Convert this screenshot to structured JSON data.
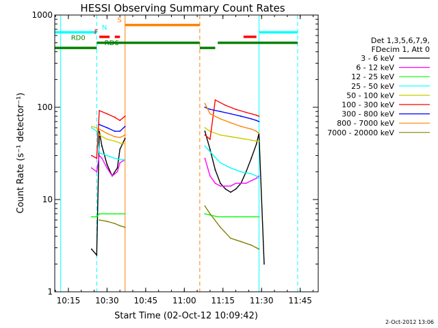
{
  "chart_data": {
    "type": "line",
    "title": "HESSI Observing Summary Count Rates",
    "xlabel": "Start Time (02-Oct-12 10:09:42)",
    "ylabel": "Count Rate (s⁻¹ detector⁻¹)",
    "x_ticks": [
      "10:15",
      "10:30",
      "10:45",
      "11:00",
      "11:15",
      "11:30",
      "11:45"
    ],
    "x_range": [
      "10:09:42",
      "11:52:00"
    ],
    "y_scale": "log",
    "y_ticks": [
      "1",
      "10",
      "100",
      "1000"
    ],
    "ylim": [
      1,
      1000
    ],
    "grid": false,
    "legend_position": "right",
    "legend_header": [
      "Det 1,3,5,6,7,9,",
      "FDecim 1, Att 0"
    ],
    "series": [
      {
        "name": "3 - 6 keV",
        "color": "#000000",
        "segments": [
          {
            "x": [
              "10:24",
              "10:26",
              "10:27",
              "10:28",
              "10:30",
              "10:32",
              "10:34",
              "10:35",
              "10:37"
            ],
            "y": [
              2.9,
              2.5,
              55,
              38,
              24,
              18,
              22,
              35,
              46
            ]
          },
          {
            "x": [
              "11:08",
              "11:10",
              "11:12",
              "11:14",
              "11:16",
              "11:18",
              "11:20",
              "11:22",
              "11:24",
              "11:26",
              "11:28",
              "11:29",
              "11:31"
            ],
            "y": [
              55,
              35,
              21,
              15,
              13,
              12,
              13,
              15,
              20,
              28,
              40,
              52,
              2.0
            ]
          }
        ]
      },
      {
        "name": "6 - 12 keV",
        "color": "#ff00ff",
        "segments": [
          {
            "x": [
              "10:24",
              "10:26",
              "10:27",
              "10:28",
              "10:30",
              "10:32",
              "10:34",
              "10:35",
              "10:37"
            ],
            "y": [
              22,
              20,
              30,
              28,
              22,
              18,
              20,
              25,
              27
            ]
          },
          {
            "x": [
              "11:08",
              "11:10",
              "11:12",
              "11:14",
              "11:16",
              "11:18",
              "11:20",
              "11:22",
              "11:24",
              "11:26",
              "11:28",
              "11:29"
            ],
            "y": [
              28,
              18,
              15,
              14,
              14,
              14,
              15,
              15,
              15,
              16,
              17,
              18
            ]
          }
        ]
      },
      {
        "name": "12 - 25 keV",
        "color": "#00ff00",
        "segments": [
          {
            "x": [
              "10:24",
              "10:26",
              "10:27",
              "10:30",
              "10:33",
              "10:35",
              "10:37"
            ],
            "y": [
              6.5,
              6.5,
              7.0,
              7.0,
              7.0,
              7.0,
              7.0
            ]
          },
          {
            "x": [
              "11:08",
              "11:10",
              "11:13",
              "11:16",
              "11:20",
              "11:24",
              "11:27",
              "11:29"
            ],
            "y": [
              7.0,
              6.8,
              6.5,
              6.5,
              6.5,
              6.5,
              6.5,
              6.5
            ]
          }
        ]
      },
      {
        "name": "25 - 50 keV",
        "color": "#00ffff",
        "segments": [
          {
            "x": [
              "10:24",
              "10:26",
              "10:27",
              "10:30",
              "10:33",
              "10:35",
              "10:37"
            ],
            "y": [
              60,
              55,
              32,
              30,
              28,
              27,
              27
            ]
          },
          {
            "x": [
              "11:08",
              "11:10",
              "11:14",
              "11:18",
              "11:22",
              "11:26",
              "11:28",
              "11:29"
            ],
            "y": [
              38,
              33,
              25,
              22,
              20,
              19,
              18,
              17
            ]
          }
        ]
      },
      {
        "name": "50 - 100 keV",
        "color": "#cccc00",
        "segments": [
          {
            "x": [
              "10:24",
              "10:26",
              "10:27",
              "10:30",
              "10:33",
              "10:35",
              "10:37"
            ],
            "y": [
              62,
              60,
              50,
              45,
              43,
              41,
              40
            ]
          },
          {
            "x": [
              "11:08",
              "11:10",
              "11:14",
              "11:18",
              "11:22",
              "11:26",
              "11:28",
              "11:29"
            ],
            "y": [
              60,
              55,
              50,
              48,
              46,
              44,
              43,
              43
            ]
          }
        ]
      },
      {
        "name": "100 - 300 keV",
        "color": "#ff0000",
        "segments": [
          {
            "x": [
              "10:24",
              "10:26",
              "10:27",
              "10:30",
              "10:33",
              "10:35",
              "10:37"
            ],
            "y": [
              30,
              28,
              92,
              85,
              78,
              72,
              80
            ]
          },
          {
            "x": [
              "11:08",
              "11:10",
              "11:12",
              "11:16",
              "11:20",
              "11:24",
              "11:28",
              "11:29"
            ],
            "y": [
              50,
              45,
              120,
              105,
              95,
              88,
              82,
              80
            ]
          }
        ]
      },
      {
        "name": "300 - 800 keV",
        "color": "#0000ff",
        "segments": [
          {
            "x": [
              "10:27",
              "10:30",
              "10:33",
              "10:35",
              "10:37"
            ],
            "y": [
              65,
              60,
              55,
              55,
              62
            ]
          },
          {
            "x": [
              "11:08",
              "11:10",
              "11:14",
              "11:18",
              "11:22",
              "11:26",
              "11:28",
              "11:29"
            ],
            "y": [
              100,
              95,
              90,
              85,
              80,
              75,
              72,
              70
            ]
          }
        ]
      },
      {
        "name": "800 - 7000 keV",
        "color": "#ff8000",
        "segments": [
          {
            "x": [
              "10:27",
              "10:30",
              "10:33",
              "10:35",
              "10:37"
            ],
            "y": [
              58,
              52,
              48,
              47,
              50
            ]
          },
          {
            "x": [
              "11:08",
              "11:10",
              "11:14",
              "11:18",
              "11:22",
              "11:26",
              "11:28",
              "11:29"
            ],
            "y": [
              110,
              85,
              75,
              68,
              62,
              58,
              55,
              52
            ]
          }
        ]
      },
      {
        "name": "7000 - 20000 keV",
        "color": "#808000",
        "segments": [
          {
            "x": [
              "10:27",
              "10:30",
              "10:33",
              "10:35",
              "10:37"
            ],
            "y": [
              6.0,
              5.8,
              5.5,
              5.2,
              5.0
            ]
          },
          {
            "x": [
              "11:08",
              "11:10",
              "11:14",
              "11:18",
              "11:22",
              "11:26",
              "11:28",
              "11:29"
            ],
            "y": [
              8.5,
              7.0,
              5.0,
              3.8,
              3.5,
              3.2,
              3.0,
              2.9
            ]
          }
        ]
      }
    ],
    "vertical_markers": [
      {
        "time": "10:12",
        "color": "#00ffff",
        "style": "solid"
      },
      {
        "time": "10:26",
        "color": "#00ffff",
        "style": "dashed"
      },
      {
        "time": "10:37",
        "color": "#ff8000",
        "style": "solid"
      },
      {
        "time": "11:06",
        "color": "#ff8000",
        "style": "dashed"
      },
      {
        "time": "11:29",
        "color": "#00ffff",
        "style": "solid"
      },
      {
        "time": "11:44",
        "color": "#00ffff",
        "style": "dashed"
      }
    ],
    "flag_bars": [
      {
        "label": "N",
        "color": "#00ffff",
        "value": 650,
        "spans": [
          [
            "10:09:42",
            "10:26"
          ],
          [
            "11:29",
            "11:44"
          ]
        ],
        "label_at": "10:28"
      },
      {
        "label": "S",
        "color": "#ff8000",
        "value": 780,
        "spans": [
          [
            "10:37",
            "11:06"
          ]
        ],
        "label_at": "10:34"
      },
      {
        "label": "F",
        "color": "#ff0000",
        "value": 580,
        "spans": [
          [
            "10:27",
            "10:31"
          ],
          [
            "10:33",
            "10:35"
          ],
          [
            "11:23",
            "11:28"
          ]
        ],
        "label_at": "10:25"
      },
      {
        "label": "RD0",
        "color": "#008000",
        "value": 500,
        "spans": [
          [
            "10:26",
            "11:06"
          ],
          [
            "11:13",
            "11:44"
          ]
        ],
        "label_at": "10:16"
      },
      {
        "label": "RD6",
        "color": "#008000",
        "value": 440,
        "spans": [
          [
            "10:09:42",
            "10:26"
          ],
          [
            "11:06",
            "11:12"
          ]
        ],
        "label_at": "10:29"
      }
    ]
  },
  "footer": {
    "timestamp": "2-Oct-2012 13:06"
  }
}
